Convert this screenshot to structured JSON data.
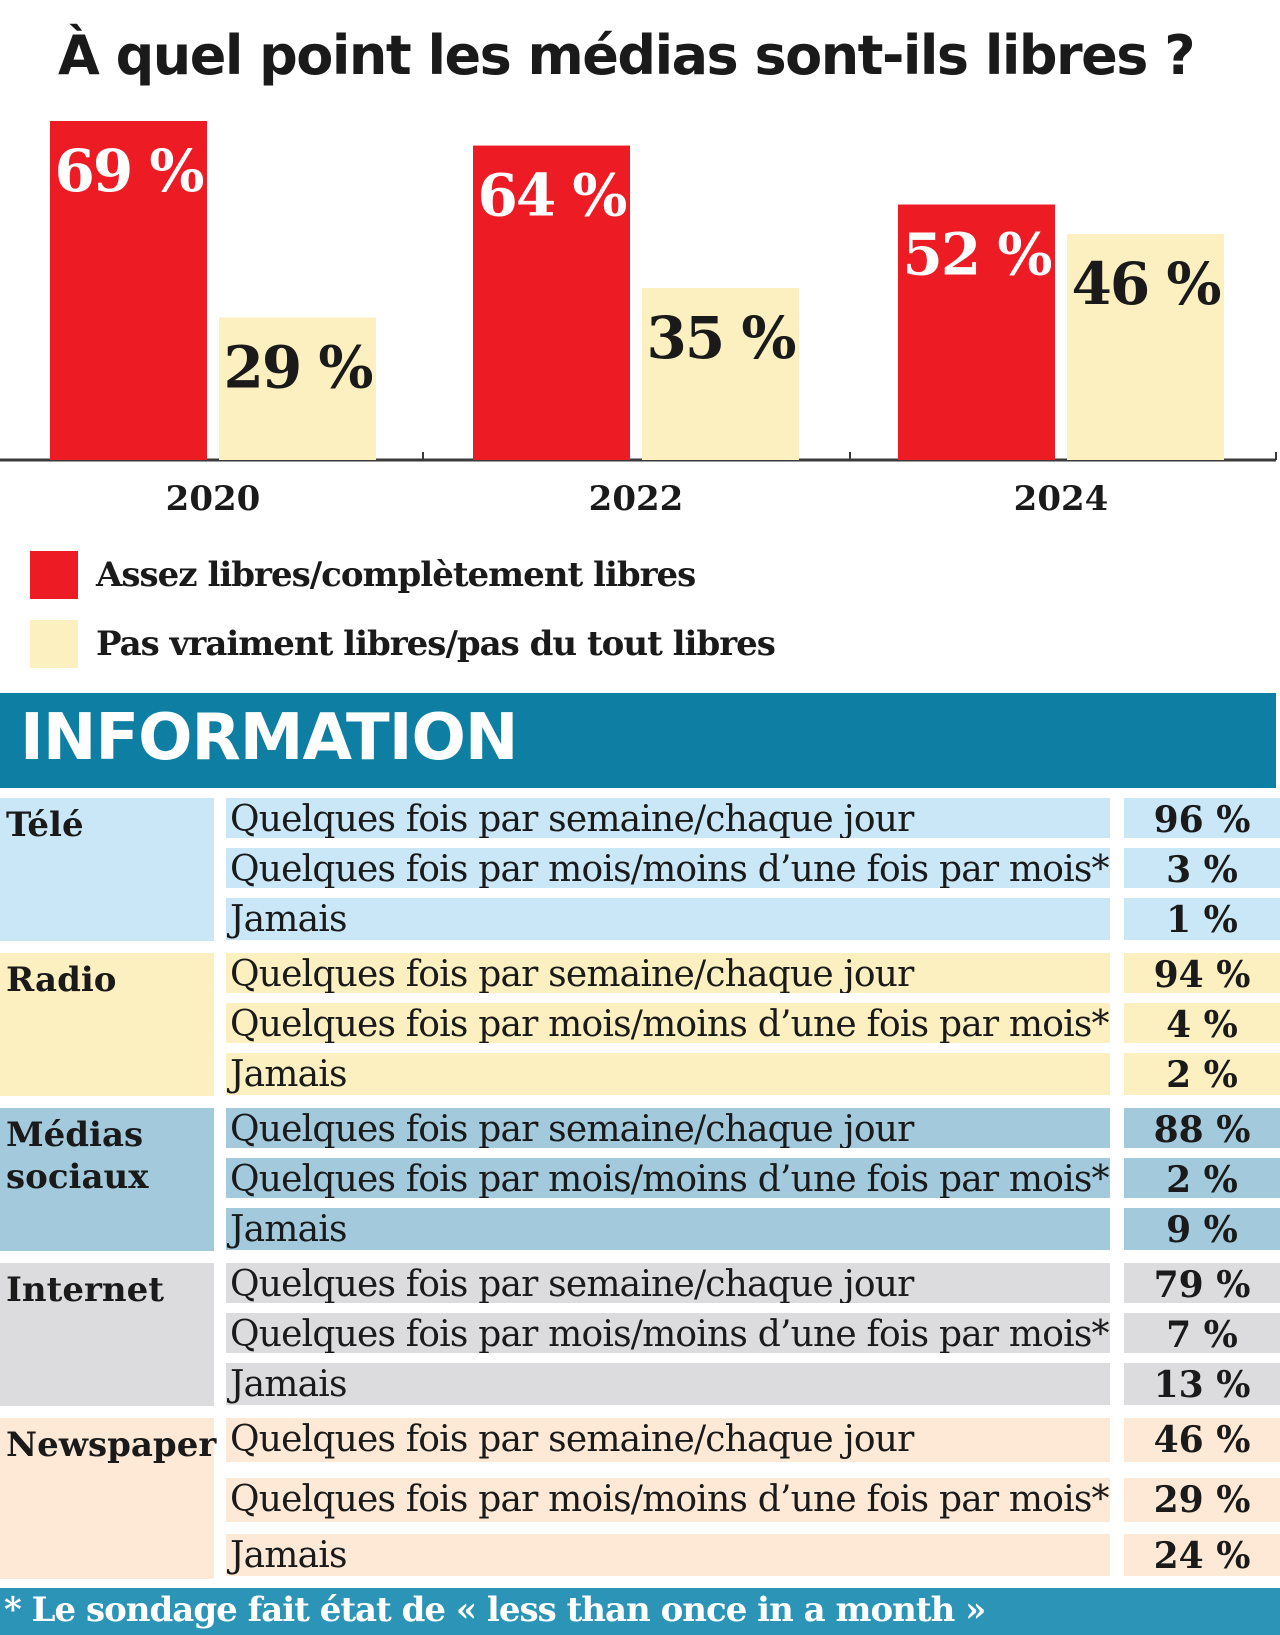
{
  "title": "À quel point les médias sont-ils libres ?",
  "chart_data": {
    "type": "bar",
    "title": "À quel point les médias sont-ils libres ?",
    "categories": [
      "2020",
      "2022",
      "2024"
    ],
    "series": [
      {
        "name": "Assez libres/complètement libres",
        "values": [
          69,
          64,
          52
        ],
        "labels": [
          "69 %",
          "64 %",
          "52 %"
        ],
        "color": "#ed1c24"
      },
      {
        "name": "Pas vraiment libres/pas du tout libres",
        "values": [
          29,
          35,
          46
        ],
        "labels": [
          "29 %",
          "35 %",
          "46 %"
        ],
        "color": "#fcefc0"
      }
    ],
    "ylim": [
      0,
      69
    ],
    "grid": false,
    "legend": "bottom-left"
  },
  "legend": [
    {
      "label": "Assez libres/complètement libres",
      "color": "#ed1c24"
    },
    {
      "label": "Pas vraiment libres/pas du tout libres",
      "color": "#fcefc0"
    }
  ],
  "info": {
    "title": "INFORMATION",
    "groups": [
      {
        "label": "Télé",
        "color": "#c9e7f7",
        "rows": [
          {
            "label": "Quelques fois par semaine/chaque jour",
            "value": "96 %"
          },
          {
            "label": "Quelques fois par mois/moins d’une fois par mois*",
            "value": "3 %"
          },
          {
            "label": "Jamais",
            "value": "1 %"
          }
        ]
      },
      {
        "label": "Radio",
        "color": "#fcefc0",
        "rows": [
          {
            "label": "Quelques fois par semaine/chaque jour",
            "value": "94 %"
          },
          {
            "label": "Quelques fois par mois/moins d’une fois par mois*",
            "value": "4 %"
          },
          {
            "label": "Jamais",
            "value": "2 %"
          }
        ]
      },
      {
        "label": "Médias sociaux",
        "color": "#a2cadc",
        "rows": [
          {
            "label": "Quelques fois par semaine/chaque jour",
            "value": "88 %"
          },
          {
            "label": "Quelques fois par mois/moins d’une fois par mois*",
            "value": "2 %"
          },
          {
            "label": "Jamais",
            "value": "9 %"
          }
        ]
      },
      {
        "label": "Internet",
        "color": "#dcdcde",
        "rows": [
          {
            "label": "Quelques fois par semaine/chaque jour",
            "value": "79 %"
          },
          {
            "label": "Quelques fois par mois/moins d’une fois par mois*",
            "value": "7 %"
          },
          {
            "label": "Jamais",
            "value": "13 %"
          }
        ]
      },
      {
        "label": "Newspaper",
        "color": "#fde9d6",
        "rows": [
          {
            "label": "Quelques fois par semaine/chaque jour",
            "value": "46 %"
          },
          {
            "label": "Quelques fois par mois/moins d’une fois par mois*",
            "value": "29 %"
          },
          {
            "label": "Jamais",
            "value": "24 %"
          }
        ]
      }
    ]
  },
  "footnote": "* Le sondage fait état de « less than once in a month »"
}
